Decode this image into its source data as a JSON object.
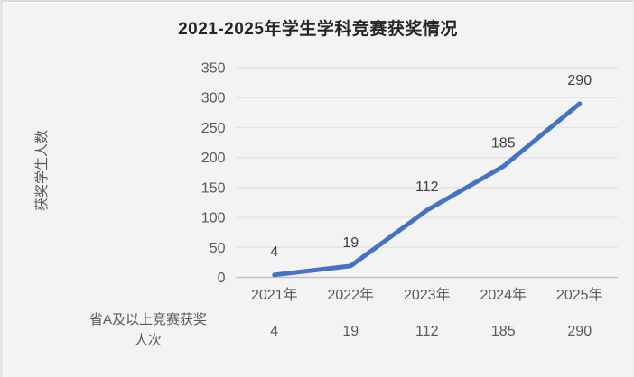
{
  "window": {
    "background": "#f3f3f3"
  },
  "chart_data": {
    "type": "line",
    "title": "2021-2025年学生学科竞赛获奖情况",
    "xlabel": "",
    "ylabel": "获奖学生人数",
    "categories": [
      "2021年",
      "2022年",
      "2023年",
      "2024年",
      "2025年"
    ],
    "series": [
      {
        "name": "省A及以上竞赛获奖人次",
        "values": [
          4,
          19,
          112,
          185,
          290
        ]
      }
    ],
    "ylim": [
      0,
      350
    ],
    "ytick_step": 50,
    "yticks": [
      0,
      50,
      100,
      150,
      200,
      250,
      300,
      350
    ],
    "grid": true,
    "data_labels": true,
    "legend_position": "data-table-below",
    "line_color": "#4472C4"
  },
  "colors": {
    "accent_line": "#4472C4",
    "grid": "#e2e2e2",
    "axis": "#c3c3c3",
    "tick_label": "#595959",
    "category_label": "#595959",
    "table_value": "#595959",
    "data_label": "#3f3f3f",
    "title": "#262626"
  }
}
